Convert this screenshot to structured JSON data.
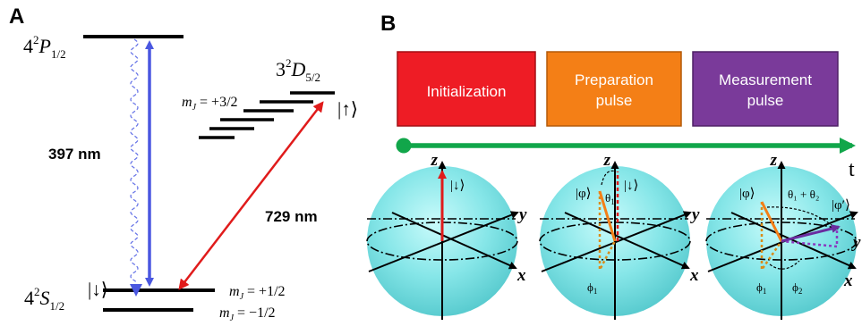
{
  "panel_a": {
    "label": "A",
    "levels": {
      "p_state": {
        "base": "4",
        "sup": "2",
        "sym": "P",
        "sub": "1/2"
      },
      "d_state": {
        "base": "3",
        "sup": "2",
        "sym": "D",
        "sub": "5/2"
      },
      "s_state": {
        "base": "4",
        "sup": "2",
        "sym": "S",
        "sub": "1/2"
      }
    },
    "mj_d": "+3/2",
    "mj_s_upper": "+1/2",
    "mj_s_lower": "−1/2",
    "mj_prefix": "m",
    "mj_sub": "J",
    "mj_eq": " = ",
    "ket_up": "|↑⟩",
    "ket_down": "|↓⟩",
    "wavelength_397": "397 nm",
    "wavelength_729": "729 nm",
    "colors": {
      "laser_397": "#4a57e0",
      "laser_729": "#e01b1b",
      "decay": "#6b78e8"
    }
  },
  "panel_b": {
    "label": "B",
    "pulses": [
      {
        "line1": "Initialization",
        "line2": "",
        "color": "#ee1c25"
      },
      {
        "line1": "Preparation",
        "line2": "pulse",
        "color": "#f47f16"
      },
      {
        "line1": "Measurement",
        "line2": "pulse",
        "color": "#7a3a9a"
      }
    ],
    "time_label": "t",
    "timeline_color": "#11a64a",
    "sphere_color": "#7fe3e6",
    "axes": {
      "z": "z",
      "y": "y",
      "x": "x"
    },
    "sphere1": {
      "ket": "|↓⟩"
    },
    "sphere2": {
      "ket_phi": "|φ⟩",
      "ket_down": "|↓⟩",
      "theta": "θ",
      "theta_sub": "1",
      "phi": "ϕ",
      "phi_sub": "1"
    },
    "sphere3": {
      "ket_phi": "|φ⟩",
      "ket_phi_prime": "|φ′⟩",
      "theta_sum": "θ₁ + θ₂",
      "phi1": "ϕ",
      "phi1_sub": "1",
      "phi2": "ϕ",
      "phi2_sub": "2"
    }
  }
}
